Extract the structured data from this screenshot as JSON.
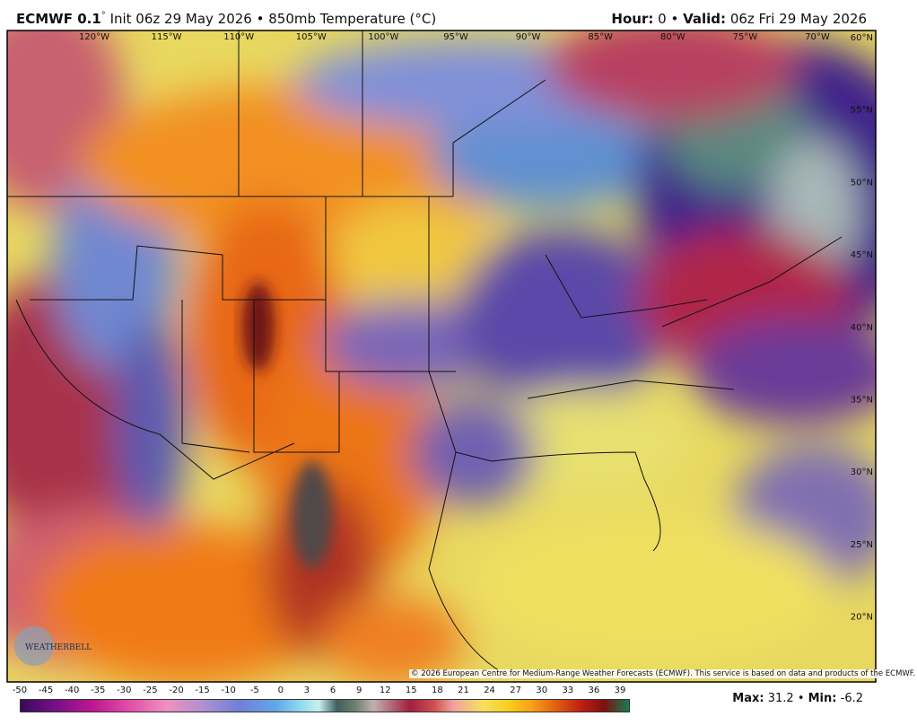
{
  "header": {
    "model": "ECMWF 0.1",
    "degree": "°",
    "subtitle": "Init 06z 29 May 2026 • 850mb Temperature (°C)",
    "hour_label": "Hour:",
    "hour": "0",
    "separator": "•",
    "valid_label": "Valid:",
    "valid": "06z Fri 29 May 2026"
  },
  "map": {
    "longitudes": [
      "120°W",
      "115°W",
      "110°W",
      "105°W",
      "100°W",
      "95°W",
      "90°W",
      "85°W",
      "80°W",
      "75°W",
      "70°W"
    ],
    "latitudes": [
      "60°N",
      "55°N",
      "50°N",
      "45°N",
      "40°N",
      "35°N",
      "30°N",
      "25°N",
      "20°N"
    ],
    "logo": "WEATHERBELL",
    "copyright": "© 2026 European Centre for Medium-Range Weather Forecasts (ECMWF). This service is based on data and products of the ECMWF."
  },
  "colorbar": {
    "labels": [
      "-50",
      "-45",
      "-40",
      "-35",
      "-30",
      "-25",
      "-20",
      "-15",
      "-10",
      "-5",
      "0",
      "3",
      "6",
      "9",
      "12",
      "15",
      "18",
      "21",
      "24",
      "27",
      "30",
      "33",
      "36",
      "39"
    ]
  },
  "footer": {
    "max_label": "Max:",
    "max": "31.2",
    "separator": "•",
    "min_label": "Min:",
    "min": "-6.2"
  }
}
